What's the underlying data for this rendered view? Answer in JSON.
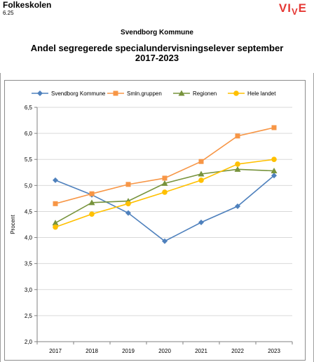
{
  "header": {
    "section": "Folkeskolen",
    "code": "6.25",
    "logo": "VIVE"
  },
  "municipality": "Svendborg Kommune",
  "chart_data": {
    "type": "line",
    "title_line1": "Andel segregerede specialundervisningselever september",
    "title_line2": "2017-2023",
    "xlabel": "",
    "ylabel": "Procent",
    "x": [
      "2017",
      "2018",
      "2019",
      "2020",
      "2021",
      "2022",
      "2023"
    ],
    "ylim": [
      2.0,
      6.5
    ],
    "yticks": [
      "2,0",
      "2,5",
      "3,0",
      "3,5",
      "4,0",
      "4,5",
      "5,0",
      "5,5",
      "6,0",
      "6,5"
    ],
    "grid": "horizontal",
    "legend_position": "top",
    "series": [
      {
        "name": "Svendborg Kommune",
        "color": "#4f81bd",
        "marker": "diamond",
        "values": [
          5.1,
          4.82,
          4.47,
          3.93,
          4.29,
          4.6,
          5.19
        ]
      },
      {
        "name": "Smln.gruppen",
        "color": "#f79646",
        "marker": "square",
        "values": [
          4.65,
          4.84,
          5.02,
          5.14,
          5.46,
          5.95,
          6.11
        ]
      },
      {
        "name": "Regionen",
        "color": "#77933c",
        "marker": "triangle",
        "values": [
          4.28,
          4.67,
          4.7,
          5.04,
          5.22,
          5.31,
          5.28
        ]
      },
      {
        "name": "Hele landet",
        "color": "#ffc000",
        "marker": "circle",
        "values": [
          4.2,
          4.45,
          4.65,
          4.87,
          5.1,
          5.41,
          5.5
        ]
      }
    ]
  }
}
